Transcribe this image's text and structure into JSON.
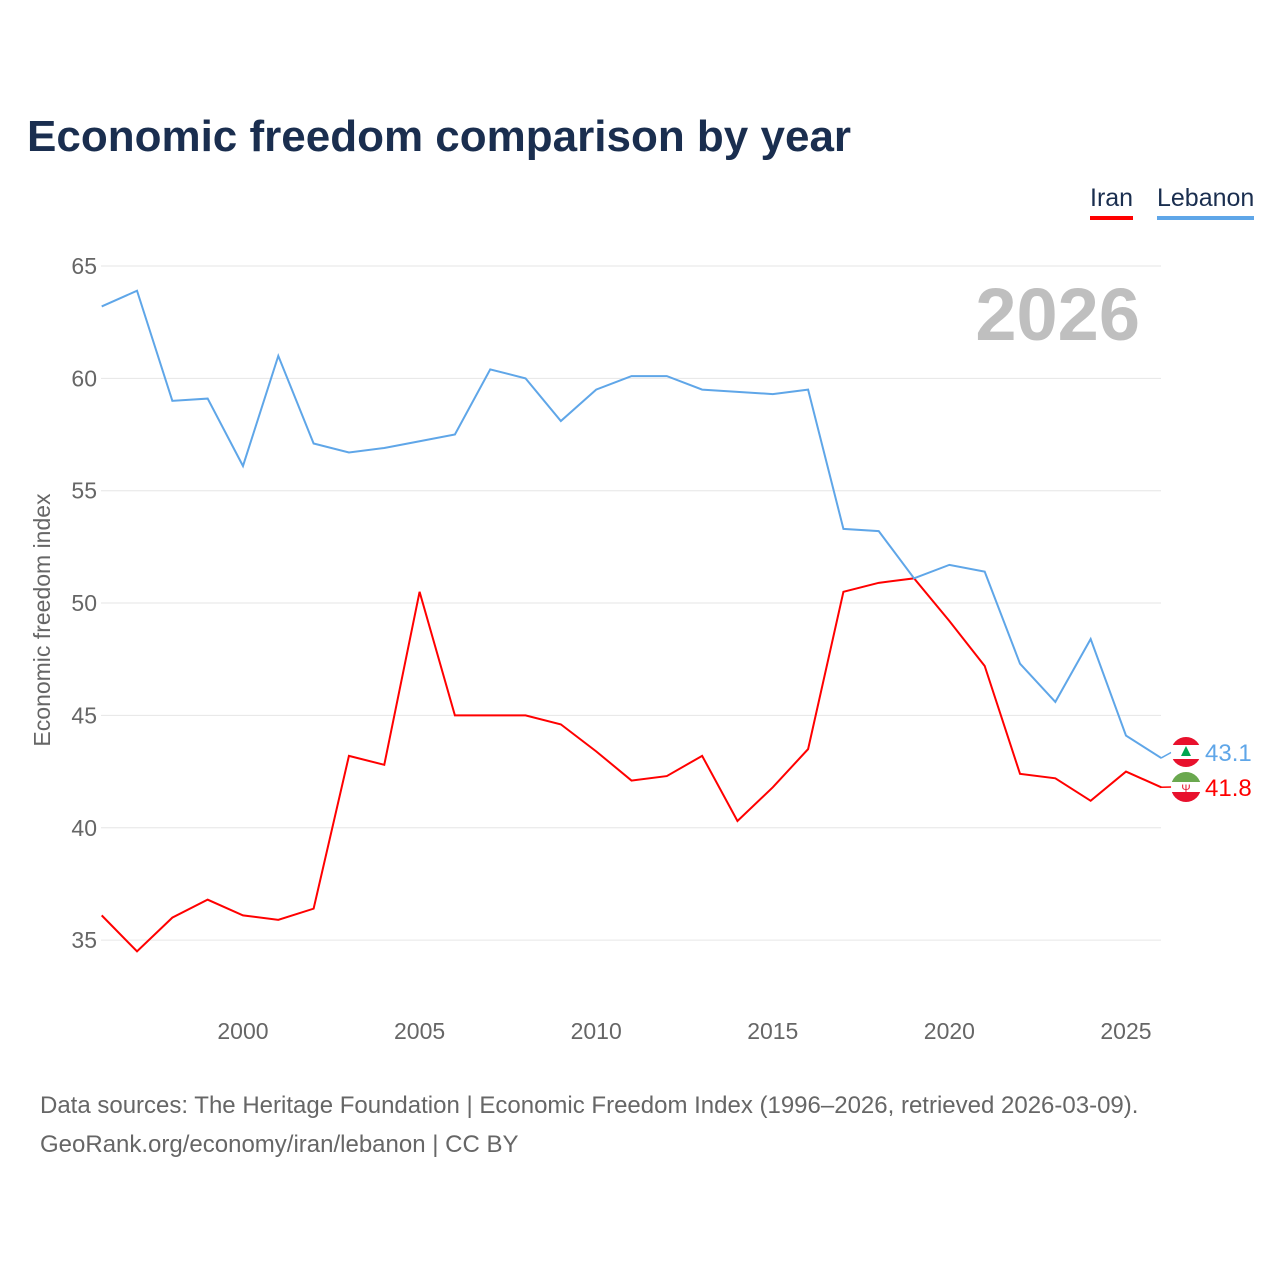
{
  "title": "Economic freedom comparison by year",
  "year_label": "2026",
  "source_line1": "Data sources: The Heritage Foundation | Economic Freedom Index (1996–2026, retrieved 2026-03-09).",
  "source_line2": "GeoRank.org/economy/iran/lebanon | CC BY",
  "chart_data": {
    "type": "line",
    "title": "Economic freedom comparison by year",
    "xlabel": "",
    "ylabel": "Economic freedom index",
    "xlim": [
      1996,
      2026
    ],
    "ylim": [
      32,
      66
    ],
    "xticks": [
      2000,
      2005,
      2010,
      2015,
      2020,
      2025
    ],
    "yticks": [
      35,
      40,
      45,
      50,
      55,
      60,
      65
    ],
    "grid": true,
    "legend": "top-right",
    "x": [
      1996,
      1997,
      1998,
      1999,
      2000,
      2001,
      2002,
      2003,
      2004,
      2005,
      2006,
      2007,
      2008,
      2009,
      2010,
      2011,
      2012,
      2013,
      2014,
      2015,
      2016,
      2017,
      2018,
      2019,
      2020,
      2021,
      2022,
      2023,
      2024,
      2025,
      2026
    ],
    "series": [
      {
        "name": "Iran",
        "color": "#ff0000",
        "end_label": "41.8",
        "flag": "iran-flag-icon",
        "values": [
          36.1,
          34.5,
          36.0,
          36.8,
          36.1,
          35.9,
          36.4,
          43.2,
          42.8,
          50.5,
          45.0,
          45.0,
          45.0,
          44.6,
          43.4,
          42.1,
          42.3,
          43.2,
          40.3,
          41.8,
          43.5,
          50.5,
          50.9,
          51.1,
          49.2,
          47.2,
          42.4,
          42.2,
          41.2,
          42.5,
          41.8
        ]
      },
      {
        "name": "Lebanon",
        "color": "#5fa6e8",
        "end_label": "43.1",
        "flag": "lebanon-flag-icon",
        "values": [
          63.2,
          63.9,
          59.0,
          59.1,
          56.1,
          61.0,
          57.1,
          56.7,
          56.9,
          57.2,
          57.5,
          60.4,
          60.0,
          58.1,
          59.5,
          60.1,
          60.1,
          59.5,
          59.4,
          59.3,
          59.5,
          53.3,
          53.2,
          51.1,
          51.7,
          51.4,
          47.3,
          45.6,
          48.4,
          44.1,
          43.1
        ]
      }
    ]
  }
}
